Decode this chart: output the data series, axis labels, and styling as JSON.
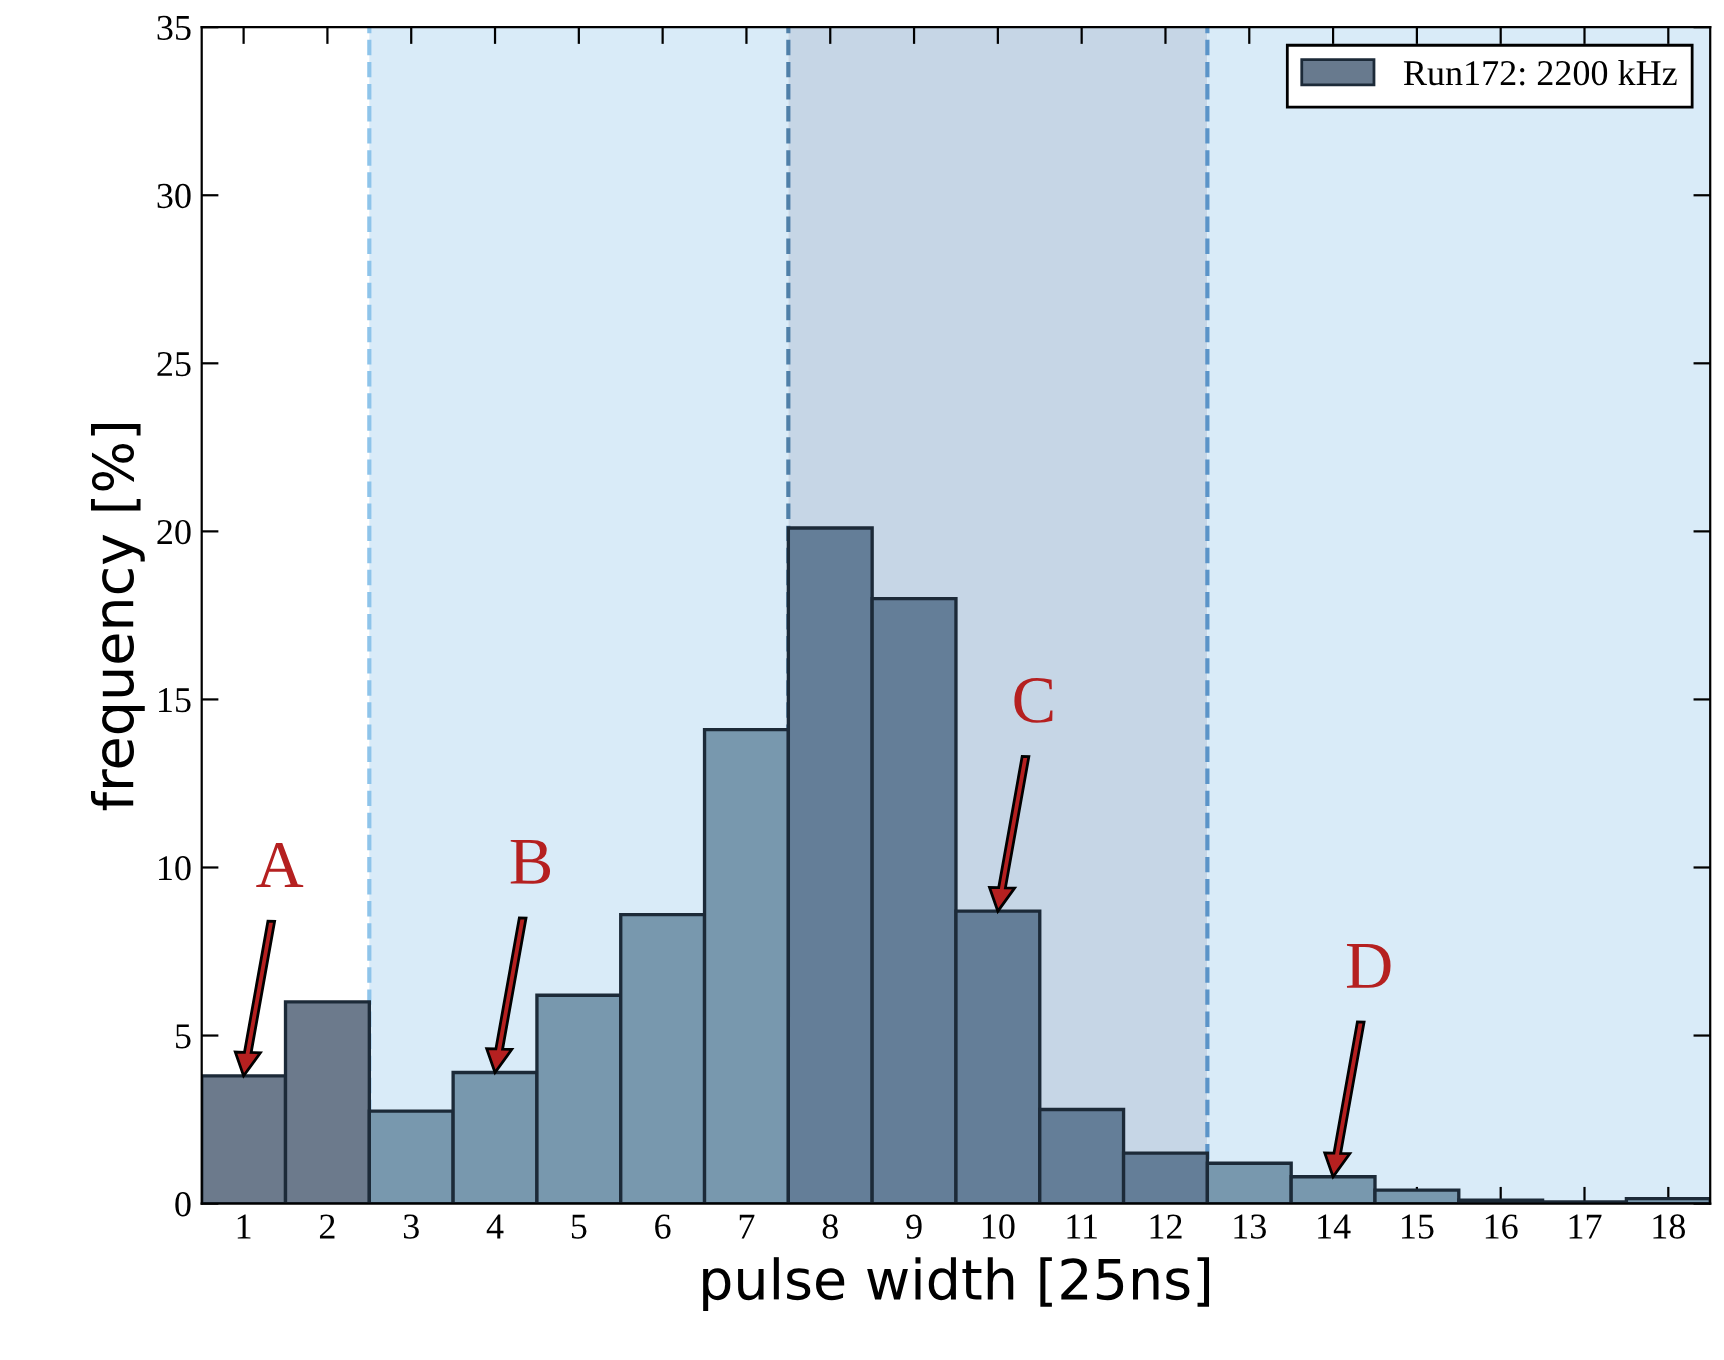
{
  "chart_data": {
    "type": "histogram",
    "xlabel": "pulse width [25ns]",
    "ylabel": "frequency [%]",
    "bins": [
      0.5,
      1.5,
      2.5,
      3.5,
      4.5,
      5.5,
      6.5,
      7.5,
      8.5,
      9.5,
      10.5,
      11.5,
      12.5,
      13.5,
      14.5,
      15.5,
      16.5,
      17.5,
      18.5
    ],
    "series": [
      {
        "name": "Run172: 2200 kHz",
        "color": "#687a8e",
        "values": [
          3.8,
          6.0,
          2.75,
          3.9,
          6.2,
          8.6,
          14.1,
          20.1,
          18.0,
          8.7,
          2.8,
          1.5,
          1.2,
          0.8,
          0.4,
          0.1,
          0.05,
          0.15
        ],
        "colors": [
          "#6c7a8c",
          "#6c7a8c",
          "#7898ae",
          "#7898ae",
          "#7898ae",
          "#7898ae",
          "#7898ae",
          "#647e98",
          "#647e98",
          "#647e98",
          "#647e98",
          "#647e98",
          "#7898ae",
          "#7898ae",
          "#7898ae",
          "#7898ae",
          "#7898ae",
          "#7898ae"
        ]
      }
    ],
    "bands": [
      {
        "axis": "x",
        "from": 2.5,
        "to": 7.5,
        "color": "#d9ebf8"
      },
      {
        "axis": "x",
        "from": 7.5,
        "to": 12.5,
        "color": "#c6d6e6"
      },
      {
        "axis": "x",
        "from": 12.5,
        "to": 18.5,
        "color": "#d9ebf8"
      }
    ],
    "ref_lines": [
      {
        "axis": "x",
        "value": 2.5,
        "color": "#8ec4ea",
        "line_style": "dashed"
      },
      {
        "axis": "x",
        "value": 7.5,
        "color": "#4f7fa8",
        "line_style": "dashed"
      },
      {
        "axis": "x",
        "value": 12.5,
        "color": "#5b94c8",
        "line_style": "dashed"
      }
    ],
    "annotations": [
      {
        "text": "A",
        "x": 1,
        "y": 3.8
      },
      {
        "text": "B",
        "x": 4,
        "y": 3.9
      },
      {
        "text": "C",
        "x": 10,
        "y": 8.7
      },
      {
        "text": "D",
        "x": 14,
        "y": 0.8
      }
    ],
    "xlim": [
      0.5,
      18.5
    ],
    "ylim": [
      0,
      35
    ],
    "xticks": [
      1,
      2,
      3,
      4,
      5,
      6,
      7,
      8,
      9,
      10,
      11,
      12,
      13,
      14,
      15,
      16,
      17,
      18
    ],
    "yticks": [
      0,
      5,
      10,
      15,
      20,
      25,
      30,
      35
    ],
    "grid": false,
    "legend": "top right"
  }
}
